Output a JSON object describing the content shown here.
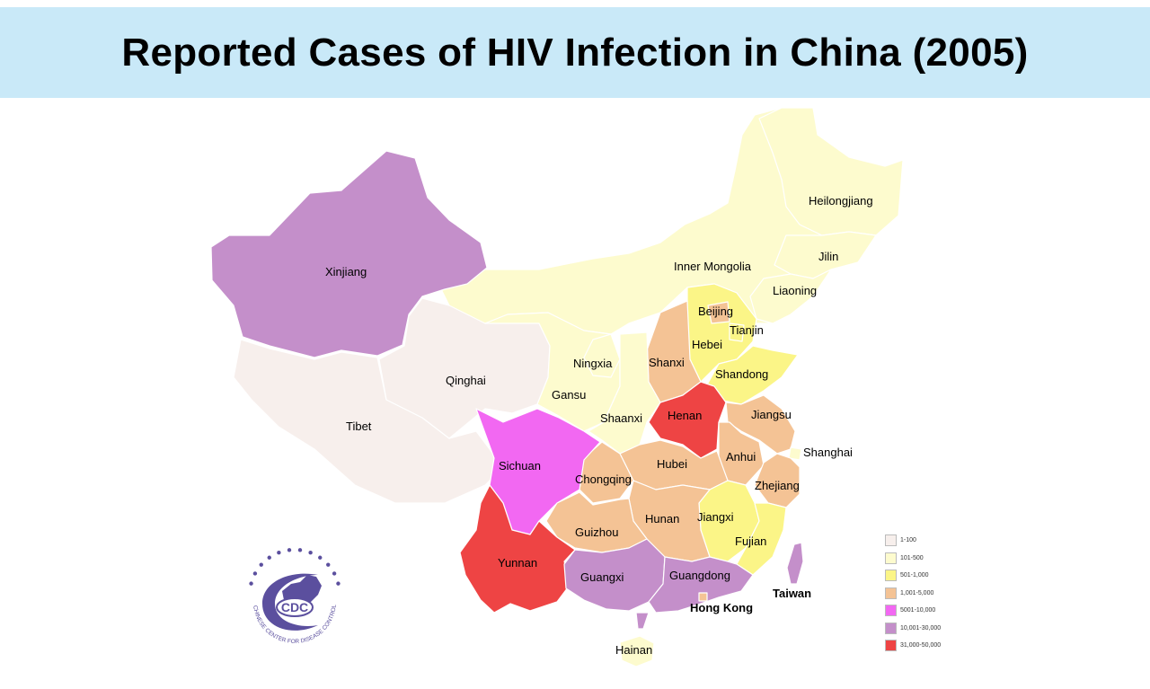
{
  "title": "Reported Cases of HIV Infection in China (2005)",
  "colors": {
    "c1": "#f7efec",
    "c2": "#fdfbce",
    "c3": "#fbf587",
    "c4": "#f4c395",
    "c5": "#f268f2",
    "c6": "#c48fca",
    "c7": "#ee4444"
  },
  "legend": [
    {
      "label": "1-100",
      "color": "#f7efec"
    },
    {
      "label": "101-500",
      "color": "#fdfbce"
    },
    {
      "label": "501-1,000",
      "color": "#fbf587"
    },
    {
      "label": "1,001-5,000",
      "color": "#f4c395"
    },
    {
      "label": "5001-10,000",
      "color": "#f268f2"
    },
    {
      "label": "10,001-30,000",
      "color": "#c48fca"
    },
    {
      "label": "31,000-50,000",
      "color": "#ee4444"
    }
  ],
  "regions": {
    "xinjiang": "Xinjiang",
    "tibet": "Tibet",
    "qinghai": "Qinghai",
    "gansu": "Gansu",
    "ningxia": "Ningxia",
    "inner_mongolia": "Inner Mongolia",
    "heilongjiang": "Heilongjiang",
    "jilin": "Jilin",
    "liaoning": "Liaoning",
    "beijing": "Beijing",
    "tianjin": "Tianjin",
    "hebei": "Hebei",
    "shanxi": "Shanxi",
    "shandong": "Shandong",
    "henan": "Henan",
    "shaanxi": "Shaanxi",
    "jiangsu": "Jiangsu",
    "shanghai": "Shanghai",
    "anhui": "Anhui",
    "hubei": "Hubei",
    "sichuan": "Sichuan",
    "chongqing": "Chongqing",
    "zhejiang": "Zhejiang",
    "jiangxi": "Jiangxi",
    "hunan": "Hunan",
    "guizhou": "Guizhou",
    "fujian": "Fujian",
    "yunnan": "Yunnan",
    "guangxi": "Guangxi",
    "guangdong": "Guangdong",
    "taiwan": "Taiwan",
    "hong_kong": "Hong Kong",
    "hainan": "Hainan"
  },
  "logo": {
    "text": "CDC",
    "ring_text": "CHINESE CENTER FOR DISEASE CONTROL AND PREVENTION",
    "color": "#5b4f9e"
  }
}
